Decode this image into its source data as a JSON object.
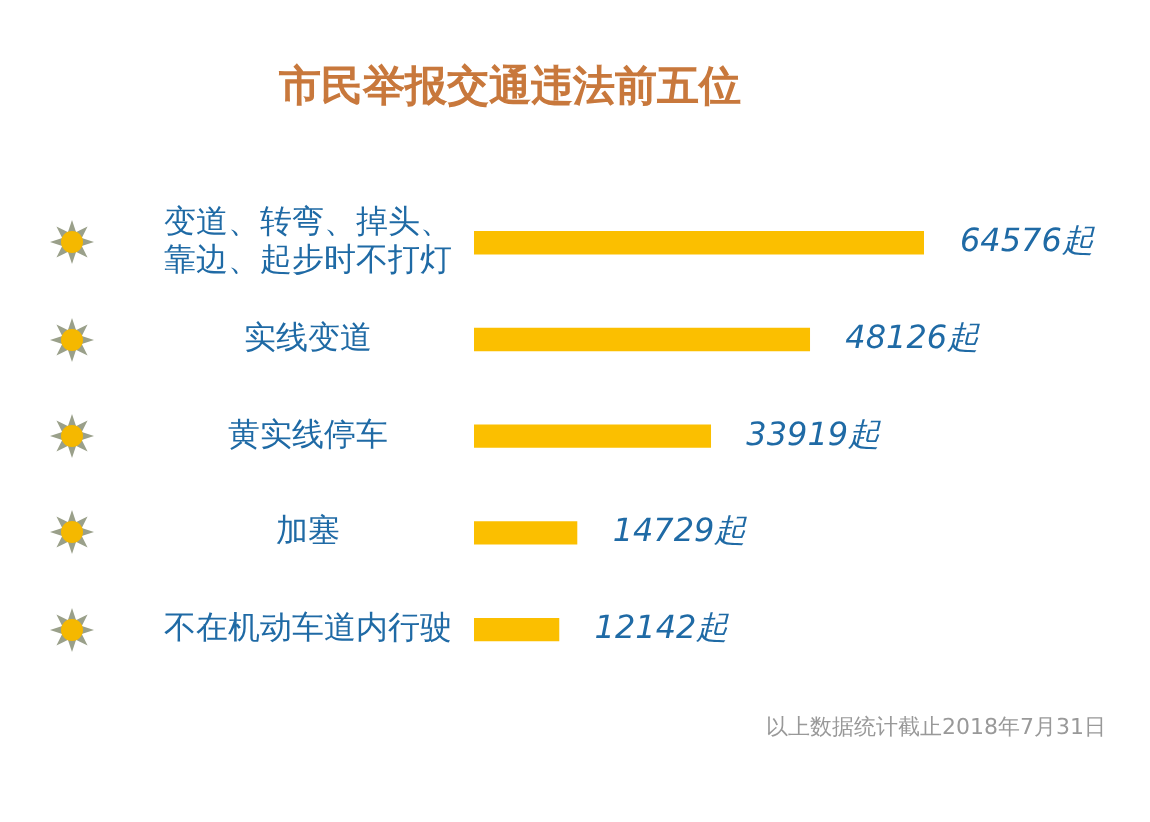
{
  "chart_data": {
    "type": "bar",
    "orientation": "horizontal",
    "title": "市民举报交通违法前五位",
    "categories": [
      "变道、转弯、掉头、靠边、起步时不打灯",
      "实线变道",
      "黄实线停车",
      "加塞",
      "不在机动车道内行驶"
    ],
    "values": [
      64576,
      48126,
      33919,
      14729,
      12142
    ],
    "value_labels": [
      "64576起",
      "48126起",
      "33919起",
      "14729起",
      "12142起"
    ],
    "color": "#fbbf00",
    "annotations": [
      "以上数据统计截止2018年7月31日"
    ]
  }
}
